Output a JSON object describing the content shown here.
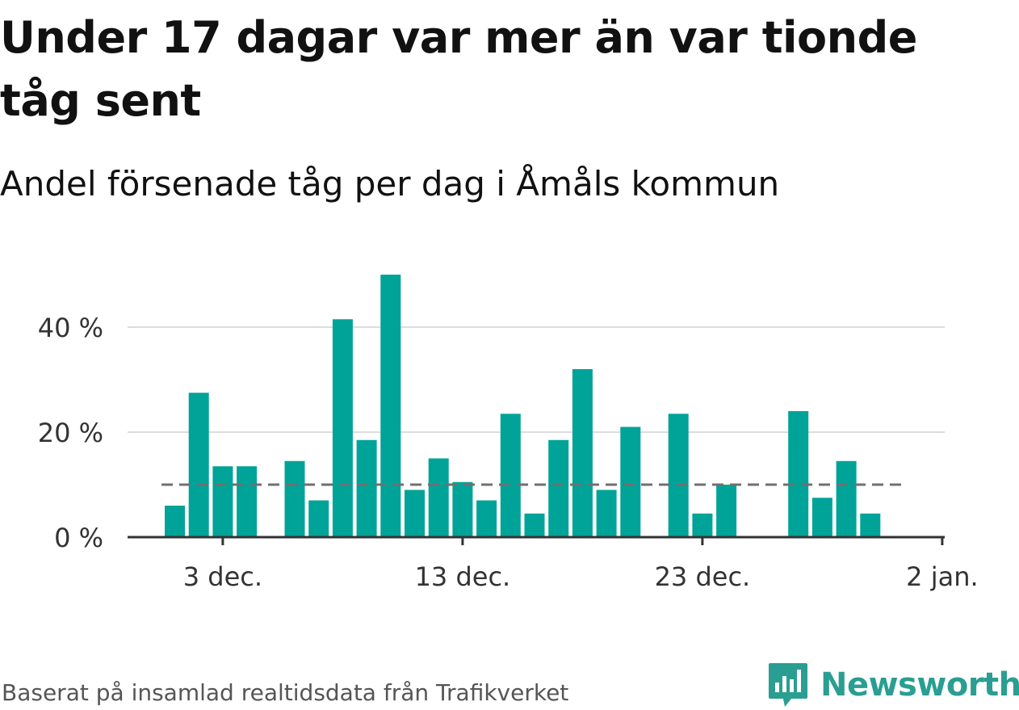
{
  "title": "Under 17 dagar var mer än var tionde tåg sent",
  "subtitle": "Andel försenade tåg per dag i Åmåls kommun",
  "source": "Baserat på insamlad realtidsdata från Trafikverket",
  "brand": {
    "name": "Newsworthy",
    "color": "#2a9e92"
  },
  "colors": {
    "bar": "#00a398",
    "reference": "#707070",
    "grid": "#dddddd",
    "axis": "#333333"
  },
  "chart_data": {
    "type": "bar",
    "x_unit": "day",
    "categories": [
      "1 dec.",
      "2 dec.",
      "3 dec.",
      "4 dec.",
      "5 dec.",
      "6 dec.",
      "7 dec.",
      "8 dec.",
      "9 dec.",
      "10 dec.",
      "11 dec.",
      "12 dec.",
      "13 dec.",
      "14 dec.",
      "15 dec.",
      "16 dec.",
      "17 dec.",
      "18 dec.",
      "19 dec.",
      "20 dec.",
      "21 dec.",
      "22 dec.",
      "23 dec.",
      "24 dec.",
      "25 dec.",
      "26 dec.",
      "27 dec.",
      "28 dec.",
      "29 dec.",
      "30 dec.",
      "31 dec."
    ],
    "values": [
      6,
      27.5,
      13.5,
      13.5,
      null,
      14.5,
      7,
      41.5,
      18.5,
      50,
      9,
      15,
      10.5,
      7,
      23.5,
      4.5,
      18.5,
      32,
      9,
      21,
      null,
      23.5,
      4.5,
      10,
      null,
      null,
      24,
      7.5,
      14.5,
      4.5,
      null
    ],
    "reference_line": 10,
    "ylim": [
      0,
      50
    ],
    "yticks": [
      0,
      20,
      40
    ],
    "ytick_labels": [
      "0 %",
      "20 %",
      "40 %"
    ],
    "xticks": [
      "3 dec.",
      "13 dec.",
      "23 dec.",
      "2 jan."
    ],
    "xtick_positions": [
      "3 dec.",
      "13 dec.",
      "23 dec.",
      "2 jan."
    ],
    "xlabel": "",
    "ylabel": "",
    "grid": true,
    "legend": "none"
  }
}
